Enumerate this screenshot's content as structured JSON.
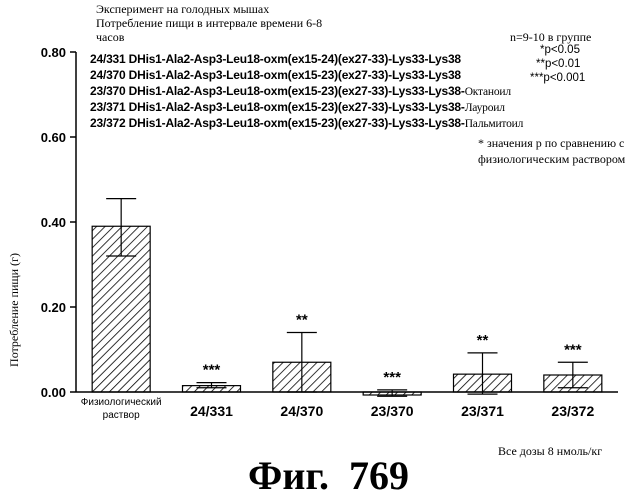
{
  "header": {
    "line1": "Эксперимент на голодных мышах",
    "line2": "Потребление пищи в интервале времени 6-8",
    "line3": "часов",
    "group_n": "n=9-10 в группе"
  },
  "legend": {
    "compounds": [
      {
        "text": "24/331 DHis1-Ala2-Asp3-Leu18-oxm(ex15-24)(ex27-33)-Lys33-Lys38",
        "suffix": ""
      },
      {
        "text": "24/370 DHis1-Ala2-Asp3-Leu18-oxm(ex15-23)(ex27-33)-Lys33-Lys38",
        "suffix": ""
      },
      {
        "text": "23/370 DHis1-Ala2-Asp3-Leu18-oxm(ex15-23)(ex27-33)-Lys33-Lys38-",
        "suffix": "Октаноил"
      },
      {
        "text": "23/371 DHis1-Ala2-Asp3-Leu18-oxm(ex15-23)(ex27-33)-Lys33-Lys38-",
        "suffix": "Лауроил"
      },
      {
        "text": "23/372 DHis1-Ala2-Asp3-Leu18-oxm(ex15-23)(ex27-33)-Lys33-Lys38-",
        "suffix": "Пальмитоил"
      }
    ],
    "significance": [
      "*p<0.05",
      "**p<0.01",
      "***p<0.001"
    ],
    "note_line1": "* значения p по сравнению с",
    "note_line2": "физиологическим раствором"
  },
  "footer": {
    "dose_note": "Все дозы 8 нмоль/кг",
    "figure_label": "Фиг.  769"
  },
  "chart_data": {
    "type": "bar",
    "categories": [
      "Физиологический раствор",
      "24/331",
      "24/370",
      "23/370",
      "23/371",
      "23/372"
    ],
    "values": [
      0.39,
      0.015,
      0.07,
      -0.005,
      0.042,
      0.04
    ],
    "error_upper": [
      0.455,
      0.022,
      0.14,
      0.005,
      0.092,
      0.07
    ],
    "error_lower": [
      0.32,
      0.01,
      0.0,
      -0.01,
      -0.005,
      0.01
    ],
    "annotations": [
      "",
      "***",
      "**",
      "***",
      "**",
      "***"
    ],
    "ylabel": "Потребление пищи (г)",
    "yticks": [
      "0.00",
      "0.20",
      "0.40",
      "0.60",
      "0.80"
    ],
    "ylim": [
      0,
      0.8
    ],
    "colors": {
      "fill_pattern": "#000000",
      "background": "#ffffff"
    }
  }
}
